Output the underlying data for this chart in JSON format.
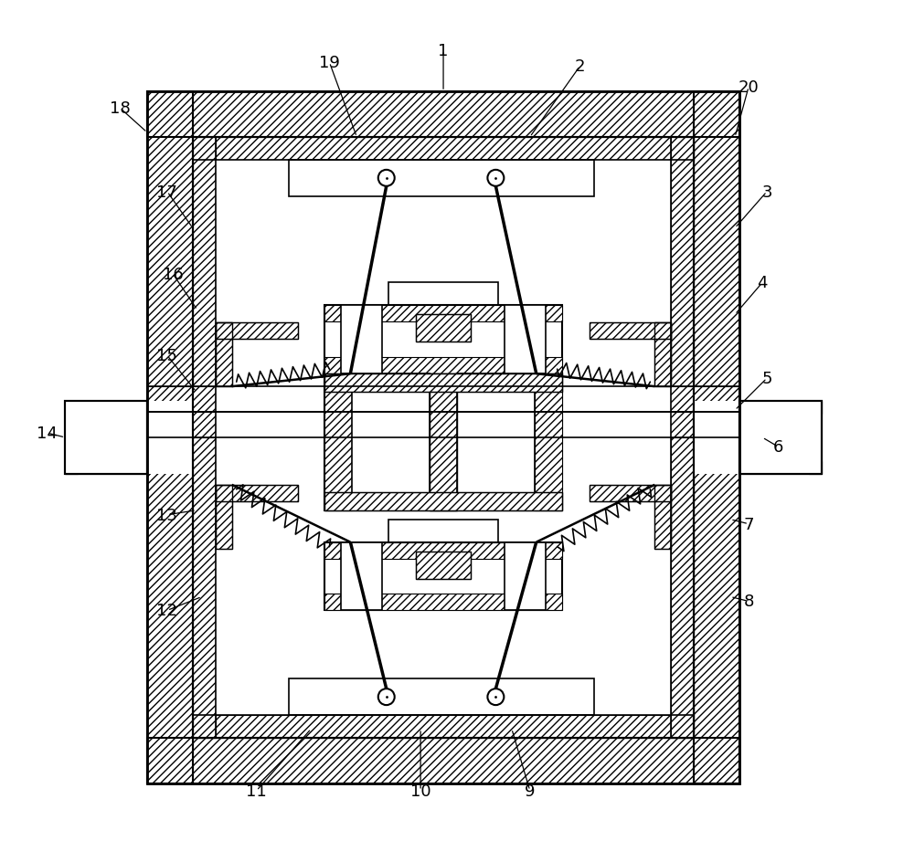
{
  "fig_width": 10.0,
  "fig_height": 9.45,
  "dpi": 100,
  "bg_color": "#ffffff"
}
